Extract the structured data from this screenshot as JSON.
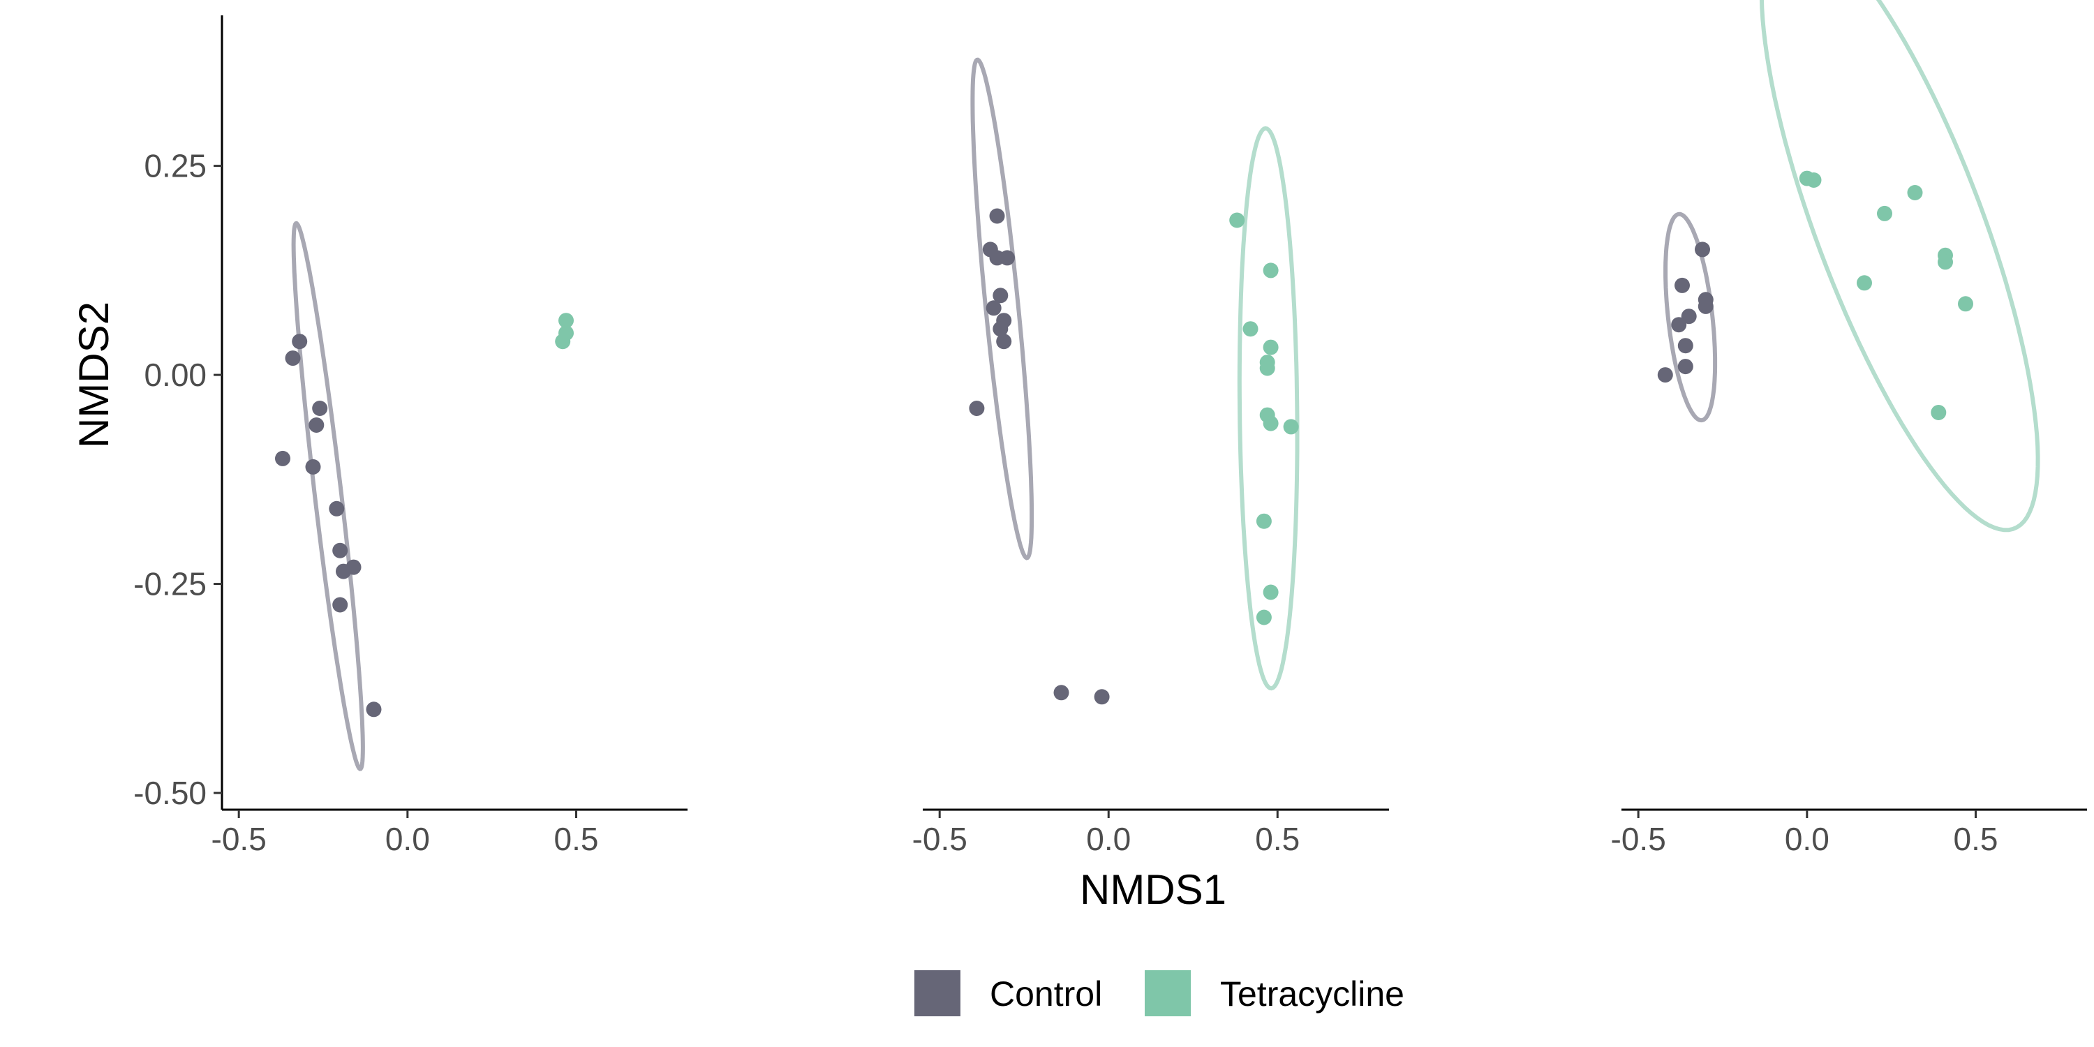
{
  "chart_data": {
    "type": "scatter",
    "xlabel": "NMDS1",
    "ylabel": "NMDS2",
    "xlim": [
      -0.55,
      0.83
    ],
    "ylim": [
      -0.52,
      0.43
    ],
    "xticks": [
      -0.5,
      0.0,
      0.5
    ],
    "xtick_labels": [
      "-0.5",
      "0.0",
      "0.5"
    ],
    "yticks": [
      -0.5,
      -0.25,
      0.0,
      0.25
    ],
    "ytick_labels": [
      "-0.50",
      "-0.25",
      "0.00",
      "0.25"
    ],
    "grid": false,
    "legend_position": "bottom",
    "colors": {
      "Control": "#666677",
      "Tetracycline": "#7fc6a9",
      "Control_ellipse": "#a8a8b3",
      "Tetracycline_ellipse": "#b4ddcd"
    },
    "legend": [
      {
        "name": "Control",
        "label": "Control"
      },
      {
        "name": "Tetracycline",
        "label": "Tetracycline"
      }
    ],
    "panels": [
      {
        "series": [
          {
            "name": "Control",
            "points": [
              [
                -0.32,
                0.04
              ],
              [
                -0.34,
                0.02
              ],
              [
                -0.26,
                -0.04
              ],
              [
                -0.27,
                -0.06
              ],
              [
                -0.37,
                -0.1
              ],
              [
                -0.28,
                -0.11
              ],
              [
                -0.21,
                -0.16
              ],
              [
                -0.2,
                -0.21
              ],
              [
                -0.16,
                -0.23
              ],
              [
                -0.19,
                -0.235
              ],
              [
                -0.2,
                -0.275
              ],
              [
                -0.1,
                -0.4
              ]
            ],
            "ellipse": {
              "cx": -0.235,
              "cy": -0.145,
              "rx": 0.34,
              "ry": 0.038,
              "angle_deg": -73.6
            }
          },
          {
            "name": "Tetracycline",
            "points": [
              [
                0.47,
                0.065
              ],
              [
                0.47,
                0.05
              ],
              [
                0.46,
                0.04
              ]
            ],
            "ellipse": null
          }
        ]
      },
      {
        "series": [
          {
            "name": "Control",
            "points": [
              [
                -0.33,
                0.19
              ],
              [
                -0.35,
                0.15
              ],
              [
                -0.33,
                0.14
              ],
              [
                -0.3,
                0.14
              ],
              [
                -0.32,
                0.095
              ],
              [
                -0.34,
                0.08
              ],
              [
                -0.31,
                0.065
              ],
              [
                -0.32,
                0.055
              ],
              [
                -0.31,
                0.04
              ],
              [
                -0.39,
                -0.04
              ],
              [
                -0.14,
                -0.38
              ],
              [
                -0.02,
                -0.385
              ]
            ],
            "ellipse": {
              "cx": -0.315,
              "cy": 0.079,
              "rx": 0.307,
              "ry": 0.047,
              "angle_deg": -75.9
            }
          },
          {
            "name": "Tetracycline",
            "points": [
              [
                0.38,
                0.185
              ],
              [
                0.48,
                0.125
              ],
              [
                0.42,
                0.055
              ],
              [
                0.48,
                0.033
              ],
              [
                0.47,
                0.015
              ],
              [
                0.47,
                0.008
              ],
              [
                0.47,
                -0.048
              ],
              [
                0.48,
                -0.058
              ],
              [
                0.54,
                -0.062
              ],
              [
                0.46,
                -0.175
              ],
              [
                0.48,
                -0.26
              ],
              [
                0.46,
                -0.29
              ]
            ],
            "ellipse": {
              "cx": 0.473,
              "cy": -0.04,
              "rx": 0.335,
              "ry": 0.085,
              "angle_deg": -88.5
            }
          }
        ]
      },
      {
        "series": [
          {
            "name": "Control",
            "points": [
              [
                -0.31,
                0.15
              ],
              [
                -0.37,
                0.107
              ],
              [
                -0.3,
                0.09
              ],
              [
                -0.3,
                0.082
              ],
              [
                -0.35,
                0.07
              ],
              [
                -0.38,
                0.06
              ],
              [
                -0.36,
                0.035
              ],
              [
                -0.36,
                0.01
              ],
              [
                -0.42,
                0.0
              ]
            ],
            "ellipse": {
              "cx": -0.346,
              "cy": 0.069,
              "rx": 0.129,
              "ry": 0.063,
              "angle_deg": -70.3
            }
          },
          {
            "name": "Tetracycline",
            "points": [
              [
                0.0,
                0.235
              ],
              [
                0.02,
                0.233
              ],
              [
                0.32,
                0.218
              ],
              [
                0.23,
                0.193
              ],
              [
                0.41,
                0.143
              ],
              [
                0.41,
                0.135
              ],
              [
                0.17,
                0.11
              ],
              [
                0.47,
                0.085
              ],
              [
                0.39,
                -0.045
              ]
            ],
            "ellipse": {
              "cx": 0.275,
              "cy": 0.177,
              "rx": 0.515,
              "ry": 0.184,
              "angle_deg": -40.5
            }
          }
        ]
      }
    ]
  }
}
